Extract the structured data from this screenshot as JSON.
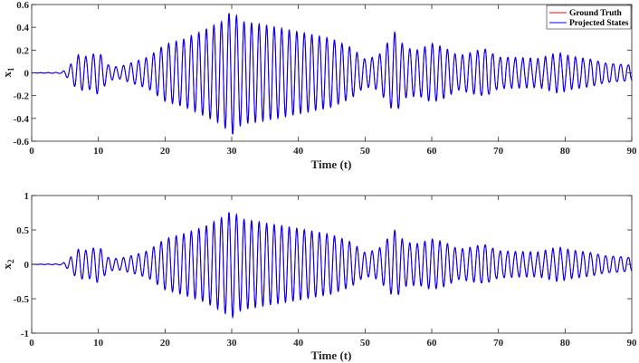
{
  "chart_data": [
    {
      "type": "line",
      "xlabel": "Time (t)",
      "ylabel": "x",
      "ylabel_subscript": "1",
      "xlim": [
        0,
        90
      ],
      "ylim": [
        -0.6,
        0.6
      ],
      "xticks": [
        0,
        10,
        20,
        30,
        40,
        50,
        60,
        70,
        80,
        90
      ],
      "yticks": [
        -0.6,
        -0.4,
        -0.2,
        0,
        0.2,
        0.4,
        0.6
      ],
      "ytick_labels": [
        "-0.6",
        "-0.4",
        "-0.2",
        "0",
        "0.2",
        "0.4",
        "0.6"
      ],
      "grid": false,
      "legend": {
        "position": "top-right",
        "entries": [
          "Ground Truth",
          "Projected States"
        ]
      },
      "series": [
        {
          "name": "Ground Truth",
          "color": "#ff0000",
          "x": [],
          "y": []
        },
        {
          "name": "Projected States",
          "color": "#0000ff",
          "x": [],
          "y": []
        }
      ],
      "envelope_keypoints": [
        [
          0,
          0
        ],
        [
          4.5,
          0.005
        ],
        [
          5.5,
          0.05
        ],
        [
          7,
          0.16
        ],
        [
          8.5,
          0.14
        ],
        [
          10,
          0.19
        ],
        [
          11.5,
          0.07
        ],
        [
          13,
          0.05
        ],
        [
          15.5,
          0.1
        ],
        [
          17.5,
          0.14
        ],
        [
          20,
          0.25
        ],
        [
          23,
          0.3
        ],
        [
          26,
          0.38
        ],
        [
          28.5,
          0.45
        ],
        [
          30,
          0.55
        ],
        [
          31.5,
          0.45
        ],
        [
          35,
          0.42
        ],
        [
          40,
          0.36
        ],
        [
          45,
          0.3
        ],
        [
          48,
          0.22
        ],
        [
          50,
          0.12
        ],
        [
          52,
          0.15
        ],
        [
          54.5,
          0.36
        ],
        [
          56,
          0.22
        ],
        [
          58,
          0.2
        ],
        [
          60,
          0.26
        ],
        [
          62,
          0.22
        ],
        [
          64,
          0.15
        ],
        [
          66,
          0.18
        ],
        [
          68,
          0.22
        ],
        [
          70,
          0.14
        ],
        [
          73,
          0.13
        ],
        [
          76,
          0.12
        ],
        [
          79,
          0.17
        ],
        [
          81,
          0.14
        ],
        [
          84,
          0.12
        ],
        [
          86,
          0.09
        ],
        [
          88,
          0.08
        ],
        [
          90,
          0.07
        ]
      ],
      "dominant_period": 1.13
    },
    {
      "type": "line",
      "xlabel": "Time (t)",
      "ylabel": "x",
      "ylabel_subscript": "2",
      "xlim": [
        0,
        90
      ],
      "ylim": [
        -1,
        1
      ],
      "xticks": [
        0,
        10,
        20,
        30,
        40,
        50,
        60,
        70,
        80,
        90
      ],
      "yticks": [
        -1,
        -0.5,
        0,
        0.5,
        1
      ],
      "ytick_labels": [
        "-1",
        "-0.5",
        "0",
        "0.5",
        "1"
      ],
      "grid": false,
      "series": [
        {
          "name": "Ground Truth",
          "color": "#ff0000",
          "x": [],
          "y": []
        },
        {
          "name": "Projected States",
          "color": "#0000ff",
          "x": [],
          "y": []
        }
      ],
      "envelope_keypoints": [
        [
          0,
          0
        ],
        [
          4.5,
          0.008
        ],
        [
          5.5,
          0.07
        ],
        [
          7,
          0.22
        ],
        [
          8.5,
          0.2
        ],
        [
          10,
          0.27
        ],
        [
          11.5,
          0.1
        ],
        [
          13,
          0.08
        ],
        [
          15.5,
          0.14
        ],
        [
          17.5,
          0.2
        ],
        [
          20,
          0.37
        ],
        [
          23,
          0.45
        ],
        [
          26,
          0.55
        ],
        [
          28.5,
          0.68
        ],
        [
          30,
          0.78
        ],
        [
          31.5,
          0.66
        ],
        [
          35,
          0.6
        ],
        [
          40,
          0.52
        ],
        [
          45,
          0.43
        ],
        [
          48,
          0.32
        ],
        [
          50,
          0.17
        ],
        [
          52,
          0.22
        ],
        [
          54.5,
          0.5
        ],
        [
          56,
          0.32
        ],
        [
          58,
          0.3
        ],
        [
          60,
          0.37
        ],
        [
          62,
          0.32
        ],
        [
          64,
          0.22
        ],
        [
          66,
          0.25
        ],
        [
          68,
          0.3
        ],
        [
          70,
          0.2
        ],
        [
          73,
          0.18
        ],
        [
          76,
          0.17
        ],
        [
          79,
          0.24
        ],
        [
          81,
          0.2
        ],
        [
          84,
          0.17
        ],
        [
          86,
          0.13
        ],
        [
          88,
          0.12
        ],
        [
          90,
          0.1
        ]
      ],
      "dominant_period": 1.13
    }
  ]
}
